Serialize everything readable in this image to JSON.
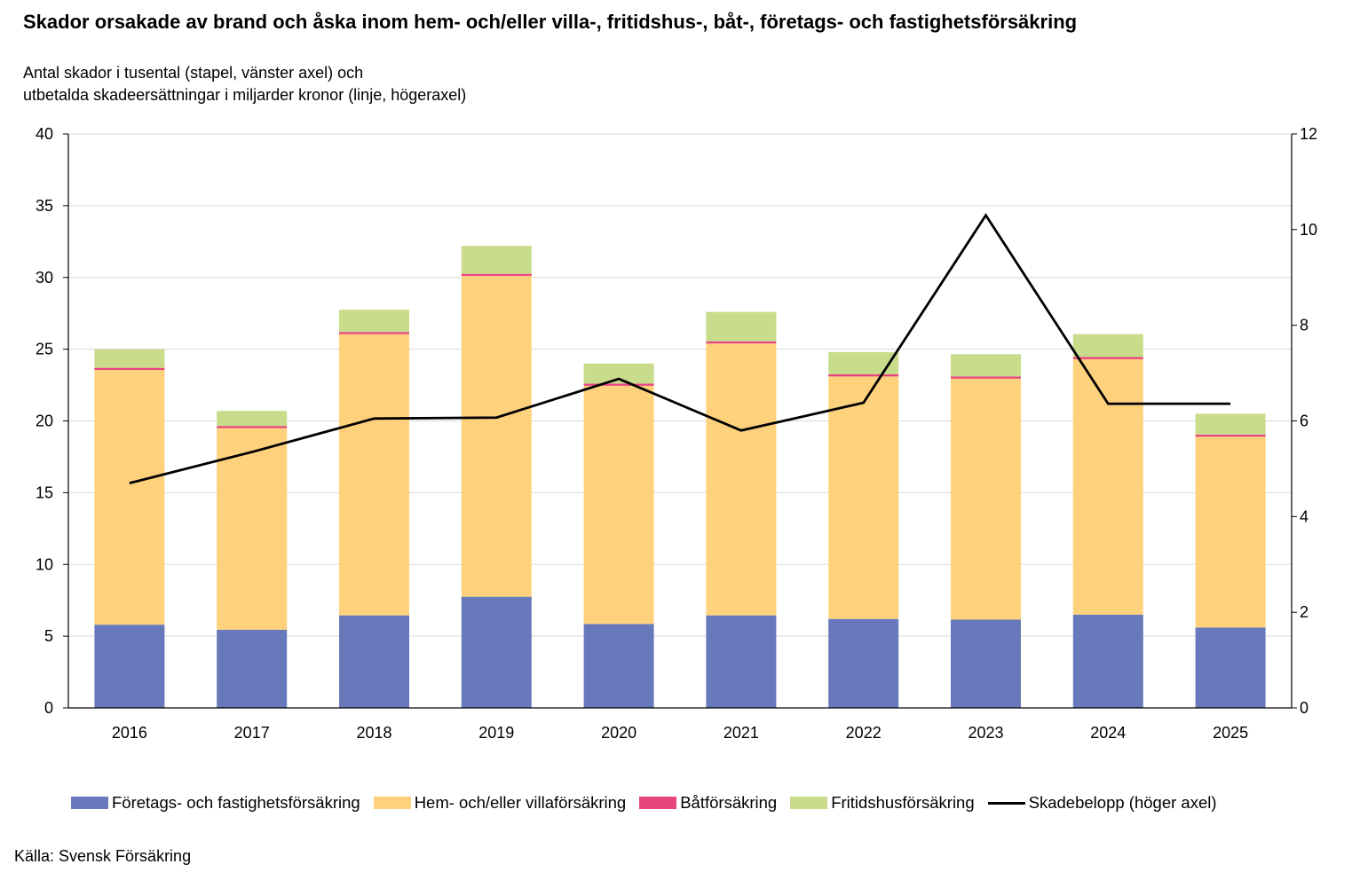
{
  "title": "Skador orsakade av brand och åska inom hem- och/eller villa-, fritidshus-, båt-, företags- och fastighetsförsäkring",
  "subtitle_line1": "Antal skador i tusental (stapel, vänster axel) och",
  "subtitle_line2": "utbetalda skadeersättningar i miljarder kronor (linje, högeraxel)",
  "source": "Källa: Svensk Försäkring",
  "chart_data": {
    "type": "bar",
    "stacked": true,
    "categories": [
      "2016",
      "2017",
      "2018",
      "2019",
      "2020",
      "2021",
      "2022",
      "2023",
      "2024",
      "2025"
    ],
    "series": [
      {
        "name": "Företags- och fastighetsförsäkring",
        "color": "#6779bb",
        "axis": "left",
        "values": [
          5.8,
          5.45,
          6.45,
          7.75,
          5.85,
          6.45,
          6.2,
          6.15,
          6.5,
          5.6
        ]
      },
      {
        "name": "Hem- och/eller villaförsäkring",
        "color": "#fed27c",
        "axis": "left",
        "values": [
          17.75,
          14.05,
          19.6,
          22.35,
          16.6,
          18.95,
          16.9,
          16.8,
          17.8,
          13.3
        ]
      },
      {
        "name": "Båtförsäkring",
        "color": "#e8457f",
        "axis": "left",
        "values": [
          0.15,
          0.15,
          0.15,
          0.15,
          0.15,
          0.15,
          0.15,
          0.15,
          0.15,
          0.15
        ]
      },
      {
        "name": "Fritidshusförsäkring",
        "color": "#c8dc8c",
        "axis": "left",
        "values": [
          1.3,
          1.05,
          1.55,
          1.95,
          1.4,
          2.05,
          1.55,
          1.55,
          1.6,
          1.45
        ]
      }
    ],
    "line": {
      "name": "Skadebelopp (höger axel)",
      "color": "#000000",
      "axis": "right",
      "values": [
        4.7,
        5.35,
        6.05,
        6.07,
        6.88,
        5.8,
        6.38,
        10.3,
        6.36,
        6.36
      ]
    },
    "left_axis": {
      "min": 0,
      "max": 40,
      "ticks": [
        0,
        5,
        10,
        15,
        20,
        25,
        30,
        35,
        40
      ]
    },
    "right_axis": {
      "min": 0,
      "max": 12,
      "ticks": [
        0,
        2,
        4,
        6,
        8,
        10,
        12
      ]
    },
    "grid": true,
    "legend_position": "bottom"
  }
}
